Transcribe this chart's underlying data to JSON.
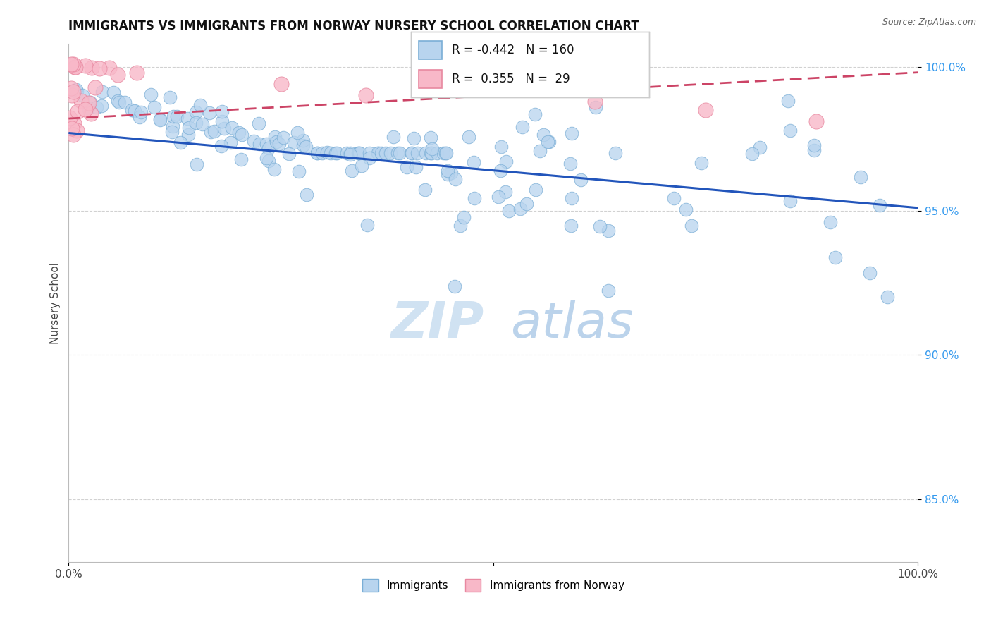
{
  "title": "IMMIGRANTS VS IMMIGRANTS FROM NORWAY NURSERY SCHOOL CORRELATION CHART",
  "source": "Source: ZipAtlas.com",
  "ylabel": "Nursery School",
  "xlim": [
    0.0,
    1.0
  ],
  "ylim": [
    0.828,
    1.008
  ],
  "ytick_positions": [
    0.85,
    0.9,
    0.95,
    1.0
  ],
  "ytick_labels": [
    "85.0%",
    "90.0%",
    "95.0%",
    "100.0%"
  ],
  "legend_r_blue": "-0.442",
  "legend_n_blue": "160",
  "legend_r_pink": "0.355",
  "legend_n_pink": "29",
  "legend_label_blue": "Immigrants",
  "legend_label_pink": "Immigrants from Norway",
  "blue_color": "#b8d4ee",
  "blue_edge": "#7aaed6",
  "pink_color": "#f8b8c8",
  "pink_edge": "#e888a0",
  "line_blue": "#2255bb",
  "line_pink": "#cc4466",
  "blue_line_x0": 0.0,
  "blue_line_y0": 0.977,
  "blue_line_x1": 1.0,
  "blue_line_y1": 0.951,
  "pink_line_x0": 0.0,
  "pink_line_y0": 0.982,
  "pink_line_x1": 1.0,
  "pink_line_y1": 0.998,
  "background_color": "#ffffff",
  "watermark1": "ZIP",
  "watermark2": "atlas"
}
